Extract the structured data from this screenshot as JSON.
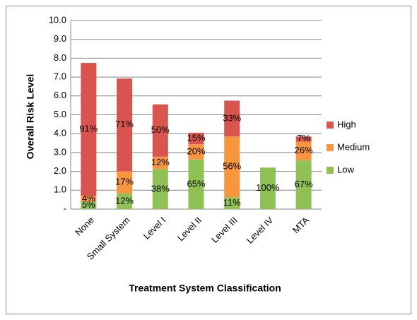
{
  "chart_data": {
    "type": "stacked-bar",
    "x_label": "Treatment System Classification",
    "y_label": "Overall Risk Level",
    "categories": [
      "None",
      "Small System",
      "Level I",
      "Level II",
      "Level III",
      "Level IV",
      "MTA"
    ],
    "series": [
      {
        "name": "Low",
        "color": "#8fc155",
        "values": [
          0.39,
          0.83,
          2.11,
          2.63,
          0.63,
          2.2,
          2.58
        ],
        "value_labels": [
          "5%",
          "12%",
          "38%",
          "65%",
          "11%",
          "100%",
          "67%"
        ]
      },
      {
        "name": "Medium",
        "color": "#f7963e",
        "values": [
          0.31,
          1.18,
          0.67,
          0.81,
          3.22,
          null,
          1.0
        ],
        "value_labels": [
          "4%",
          "17%",
          "12%",
          "20%",
          "56%",
          null,
          "26%"
        ]
      },
      {
        "name": "High",
        "color": "#d9534f",
        "values": [
          7.05,
          4.91,
          2.77,
          0.61,
          1.9,
          null,
          0.27
        ],
        "value_labels": [
          "91%",
          "71%",
          "50%",
          "15%",
          "33%",
          null,
          "7%"
        ]
      }
    ],
    "ylim": [
      0,
      10
    ],
    "yticks": [
      {
        "value": 0,
        "label": "-"
      },
      {
        "value": 1,
        "label": "1.0"
      },
      {
        "value": 2,
        "label": "2.0"
      },
      {
        "value": 3,
        "label": "3.0"
      },
      {
        "value": 4,
        "label": "4.0"
      },
      {
        "value": 5,
        "label": "5.0"
      },
      {
        "value": 6,
        "label": "6.0"
      },
      {
        "value": 7,
        "label": "7.0"
      },
      {
        "value": 8,
        "label": "8.0"
      },
      {
        "value": 9,
        "label": "9.0"
      },
      {
        "value": 10,
        "label": "10.0"
      }
    ],
    "grid": true,
    "legend": "right"
  }
}
